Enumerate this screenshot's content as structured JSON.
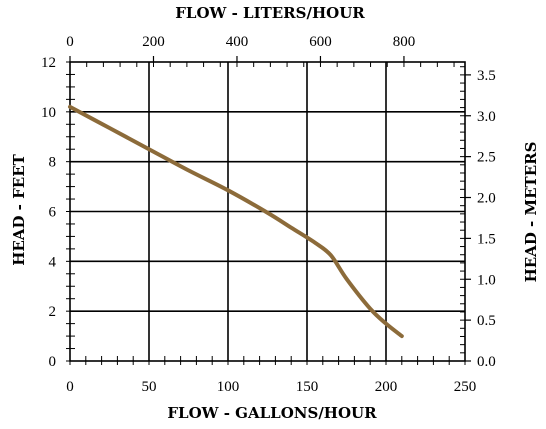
{
  "chart_data": {
    "type": "line",
    "title": "",
    "xlabel": "FLOW - GALLONS/HOUR",
    "ylabel": "HEAD - FEET",
    "x2label": "FLOW - LITERS/HOUR",
    "y2label": "HEAD - METERS",
    "xlim": [
      0,
      250
    ],
    "ylim": [
      0,
      12
    ],
    "x2lim": [
      0,
      946.25
    ],
    "y2lim": [
      0,
      3.6576
    ],
    "xticks": [
      "0",
      "50",
      "100",
      "150",
      "200",
      "250"
    ],
    "yticks": [
      "0",
      "2",
      "4",
      "6",
      "8",
      "10",
      "12"
    ],
    "x2ticks": [
      "0",
      "200",
      "400",
      "600",
      "800"
    ],
    "y2ticks": [
      "0.0",
      "0.5",
      "1.0",
      "1.5",
      "2.0",
      "2.5",
      "3.0",
      "3.5"
    ],
    "grid": true,
    "line_color": "#8c6b3a",
    "series": [
      {
        "name": "",
        "x": [
          0,
          25,
          50,
          75,
          100,
          125,
          140,
          155,
          165,
          175,
          190,
          200,
          210
        ],
        "y": [
          10.2,
          9.35,
          8.5,
          7.65,
          6.85,
          5.95,
          5.35,
          4.75,
          4.25,
          3.3,
          2.1,
          1.5,
          1.0
        ]
      }
    ]
  }
}
